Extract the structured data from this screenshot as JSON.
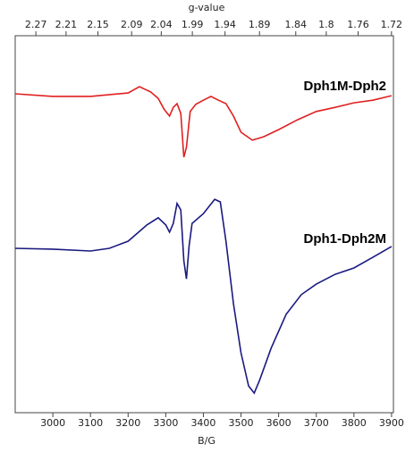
{
  "chart_data": {
    "type": "line",
    "xlabel": "B/G",
    "x2label": "g-value",
    "xlim": [
      2900,
      3905
    ],
    "xticks": [
      3000,
      3100,
      3200,
      3300,
      3400,
      3500,
      3600,
      3700,
      3800,
      3900
    ],
    "x2lim": [
      2.313,
      1.718
    ],
    "x2scale": "reciprocal",
    "x2ticks": [
      2.27,
      2.21,
      2.15,
      2.09,
      2.04,
      1.99,
      1.94,
      1.89,
      1.84,
      1.8,
      1.76,
      1.72
    ],
    "ylim": [
      0,
      100
    ],
    "series": [
      {
        "name": "Dph1M-Dph2",
        "color": "#e02020",
        "x": [
          2900,
          3000,
          3100,
          3200,
          3230,
          3260,
          3280,
          3295,
          3300,
          3310,
          3320,
          3330,
          3340,
          3348,
          3355,
          3365,
          3380,
          3400,
          3420,
          3440,
          3460,
          3480,
          3500,
          3530,
          3560,
          3600,
          3650,
          3700,
          3750,
          3800,
          3850,
          3900
        ],
        "values": [
          84.6,
          83.9,
          83.9,
          84.8,
          86.5,
          85.1,
          83.4,
          80.6,
          79.9,
          78.7,
          81.0,
          82.0,
          79.4,
          67.8,
          70.4,
          79.9,
          81.8,
          82.9,
          83.9,
          82.9,
          82.0,
          78.7,
          74.4,
          72.3,
          73.2,
          75.1,
          77.7,
          79.9,
          81.0,
          82.2,
          82.9,
          84.1
        ]
      },
      {
        "name": "Dph1-Dph2M",
        "color": "#1a1a80",
        "x": [
          2900,
          3000,
          3100,
          3150,
          3200,
          3250,
          3280,
          3300,
          3310,
          3320,
          3330,
          3340,
          3348,
          3355,
          3362,
          3370,
          3400,
          3430,
          3445,
          3460,
          3480,
          3500,
          3520,
          3535,
          3550,
          3580,
          3620,
          3660,
          3700,
          3750,
          3800,
          3850,
          3900
        ],
        "values": [
          43.6,
          43.4,
          42.9,
          43.6,
          45.5,
          49.8,
          51.7,
          49.8,
          47.9,
          50.2,
          55.5,
          53.8,
          40.3,
          35.5,
          44.3,
          50.2,
          52.8,
          56.6,
          55.9,
          45.5,
          28.9,
          15.9,
          7.1,
          5.2,
          8.8,
          17.1,
          26.1,
          31.3,
          34.1,
          36.7,
          38.4,
          41.2,
          44.1
        ]
      }
    ]
  }
}
